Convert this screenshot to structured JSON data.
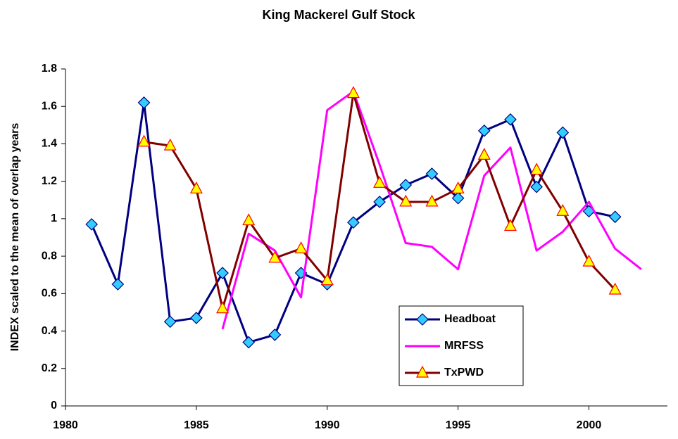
{
  "chart_data": {
    "type": "line",
    "title": "King Mackerel Gulf Stock",
    "y_label": "INDEX scaled to the mean of overlap years",
    "x": [
      1981,
      1982,
      1983,
      1984,
      1985,
      1986,
      1987,
      1988,
      1989,
      1990,
      1991,
      1992,
      1993,
      1994,
      1995,
      1996,
      1997,
      1998,
      1999,
      2000,
      2001,
      2002
    ],
    "series": [
      {
        "name": "Headboat",
        "color": "#000080",
        "marker": "diamond",
        "marker_fill": "#33ccff",
        "values": [
          0.97,
          0.65,
          1.62,
          0.45,
          0.47,
          0.71,
          0.34,
          0.38,
          0.71,
          0.65,
          0.98,
          1.09,
          1.18,
          1.24,
          1.11,
          1.47,
          1.53,
          1.17,
          1.46,
          1.04,
          1.01,
          null
        ]
      },
      {
        "name": "MRFSS",
        "color": "#ff00ff",
        "marker": "none",
        "values": [
          null,
          null,
          null,
          null,
          null,
          0.41,
          0.92,
          0.83,
          0.58,
          1.58,
          1.68,
          1.29,
          0.87,
          0.85,
          0.73,
          1.23,
          1.38,
          0.83,
          0.93,
          1.09,
          0.84,
          0.73
        ]
      },
      {
        "name": "TxPWD",
        "color": "#800000",
        "marker": "triangle",
        "marker_fill": "#ffff00",
        "marker_stroke": "#ff0000",
        "values": [
          null,
          null,
          1.41,
          1.39,
          1.16,
          0.52,
          0.99,
          0.79,
          0.84,
          0.67,
          1.67,
          1.19,
          1.09,
          1.09,
          1.16,
          1.34,
          0.96,
          1.26,
          1.04,
          0.77,
          0.62,
          null
        ]
      }
    ],
    "xlim": [
      1980,
      2003
    ],
    "xticks": [
      1980,
      1985,
      1990,
      1995,
      2000
    ],
    "ylim": [
      0,
      1.8
    ],
    "yticks": [
      0,
      0.2,
      0.4,
      0.6,
      0.8,
      1,
      1.2,
      1.4,
      1.6,
      1.8
    ],
    "grid": false
  }
}
